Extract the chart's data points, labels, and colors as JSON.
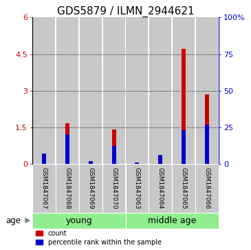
{
  "title": "GDS5879 / ILMN_2944621",
  "samples": [
    "GSM1847067",
    "GSM1847068",
    "GSM1847069",
    "GSM1847070",
    "GSM1847063",
    "GSM1847064",
    "GSM1847065",
    "GSM1847066"
  ],
  "red_values": [
    0.3,
    1.65,
    0.03,
    1.4,
    0.02,
    0.07,
    4.7,
    2.85
  ],
  "blue_pct": [
    7,
    20,
    2,
    12,
    1,
    6,
    23,
    27
  ],
  "ylim_left": [
    0,
    6
  ],
  "ylim_right": [
    0,
    100
  ],
  "yticks_left": [
    0,
    1.5,
    3.0,
    4.5,
    6.0
  ],
  "yticks_right": [
    0,
    25,
    50,
    75,
    100
  ],
  "ytick_labels_left": [
    "0",
    "1.5",
    "3",
    "4.5",
    "6"
  ],
  "ytick_labels_right": [
    "0",
    "25",
    "50",
    "75",
    "100%"
  ],
  "groups": [
    {
      "label": "young",
      "start": 0,
      "end": 4,
      "color": "#90EE90"
    },
    {
      "label": "middle age",
      "start": 4,
      "end": 8,
      "color": "#90EE90"
    }
  ],
  "age_label": "age",
  "bar_bg_color": "#c8c8c8",
  "red_color": "#cc0000",
  "blue_color": "#0000cc",
  "legend_count": "count",
  "legend_pct": "percentile rank within the sample",
  "title_fontsize": 11,
  "tick_fontsize": 8,
  "sample_fontsize": 6.5,
  "group_fontsize": 9
}
